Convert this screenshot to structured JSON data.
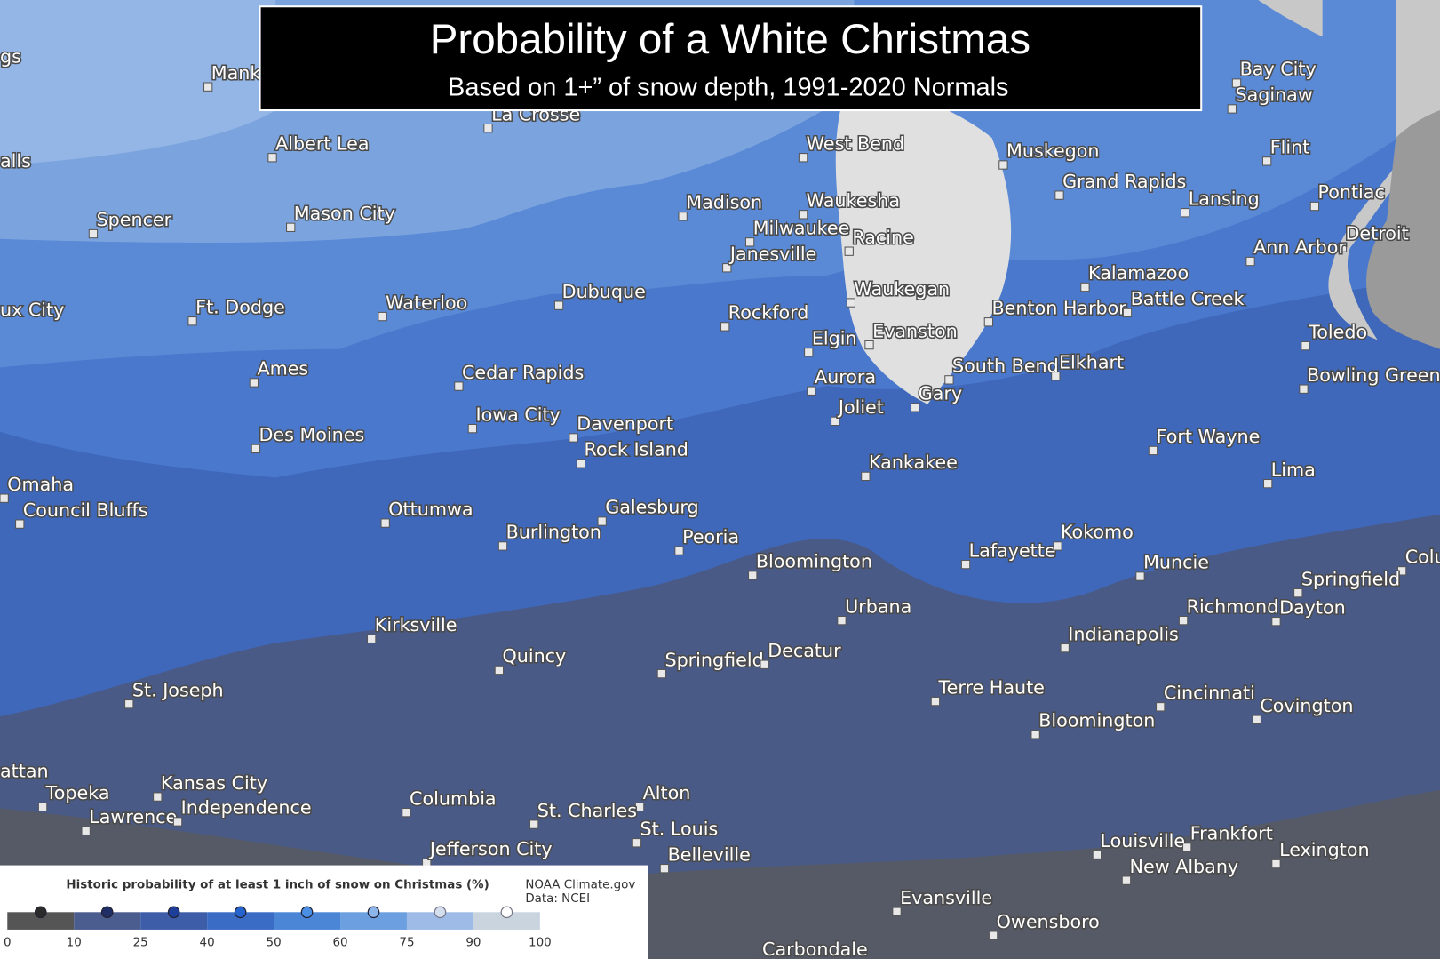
{
  "header": {
    "title": "Probability of a White Christmas",
    "subtitle": "Based on 1+” of snow depth, 1991-2020 Normals"
  },
  "legend": {
    "title": "Historic probability of at least 1 inch of snow on Christmas (%)",
    "source": "NOAA Climate.gov",
    "data_source": "Data: NCEI",
    "ticks": [
      0,
      10,
      25,
      40,
      50,
      60,
      75,
      90,
      100
    ],
    "colors": [
      "#555555",
      "#4b5d8f",
      "#3d5da9",
      "#3a6cc6",
      "#4b86d6",
      "#6c9fe0",
      "#9dbbe6",
      "#c9d4df"
    ],
    "dot_colors": [
      "#2b2b2b",
      "#1f2f66",
      "#1d3f99",
      "#2563cf",
      "#4a8ee6",
      "#8cb5ea",
      "#d3dfee",
      "#ffffff"
    ]
  },
  "cities": [
    "gs",
    "Mankato",
    "alls",
    "Albert Lea",
    "Spencer",
    "Mason City",
    "ux City",
    "Ft. Dodge",
    "Waterloo",
    "Ames",
    "Des Moines",
    "Omaha",
    "Council Bluffs",
    "Cedar Rapids",
    "Iowa City",
    "Davenport",
    "Rock Island",
    "Dubuque",
    "La Crosse",
    "West Bend",
    "Madison",
    "Waukesha",
    "Milwaukee",
    "Racine",
    "Janesville",
    "Rockford",
    "Waukegan",
    "Elgin",
    "Evanston",
    "Aurora",
    "Joliet",
    "Gary",
    "South Bend",
    "Elkhart",
    "Kankakee",
    "Muskegon",
    "Grand Rapids",
    "Lansing",
    "Flint",
    "Bay City",
    "Saginaw",
    "Pontiac",
    "Detroit",
    "Ann Arbor",
    "Kalamazoo",
    "Battle Creek",
    "Benton Harbor",
    "Toledo",
    "Bowling Green",
    "Fort Wayne",
    "Lima",
    "Ottumwa",
    "Galesburg",
    "Burlington",
    "Peoria",
    "Bloomington",
    "Urbana",
    "Lafayette",
    "Kokomo",
    "Muncie",
    "Colu",
    "Springfield",
    "Richmond",
    "Dayton",
    "Kirksville",
    "Quincy",
    "Springfield",
    "Decatur",
    "St. Joseph",
    "Indianapolis",
    "Terre Haute",
    "Bloomington",
    "Cincinnati",
    "Covington",
    "attan",
    "Kansas City",
    "Topeka",
    "Lawrence",
    "Independence",
    "Columbia",
    "Alton",
    "St. Charles",
    "St. Louis",
    "Belleville",
    "Jefferson City",
    "Louisville",
    "Frankfort",
    "New Albany",
    "Lexington",
    "Evansville",
    "Owensboro",
    "Carbondale"
  ]
}
